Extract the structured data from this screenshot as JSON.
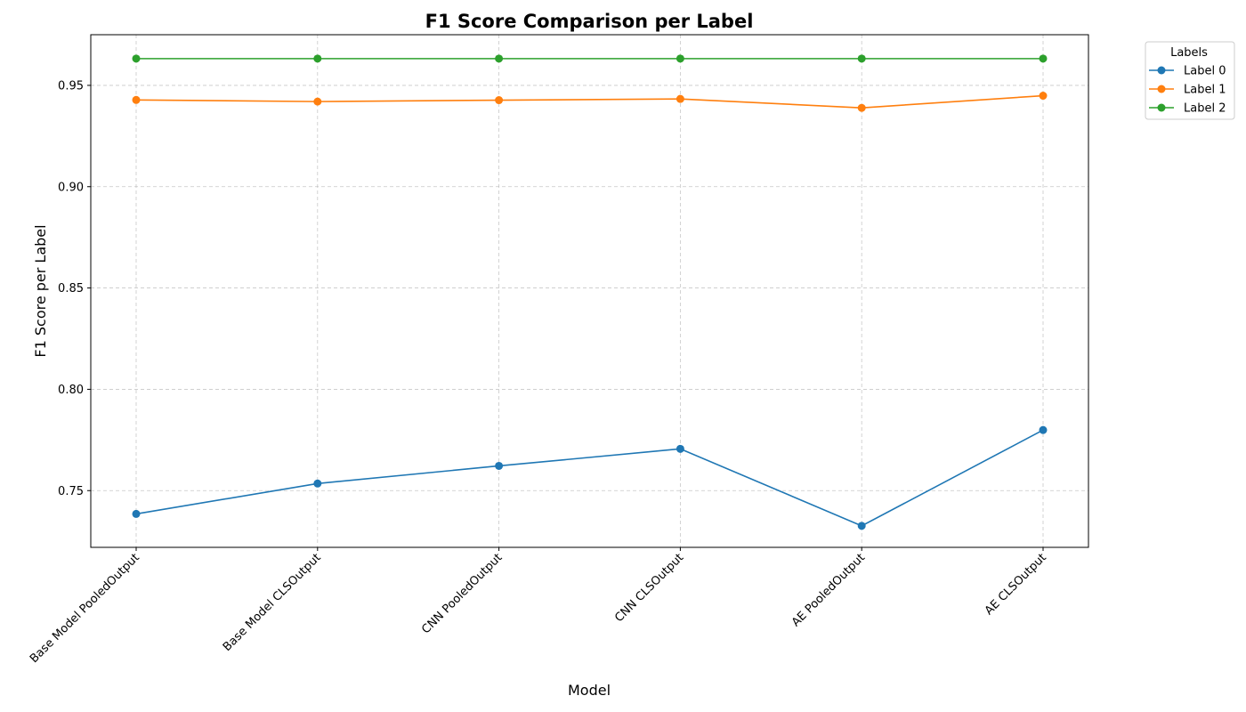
{
  "chart_data": {
    "type": "line",
    "title": "F1 Score Comparison per Label",
    "xlabel": "Model",
    "ylabel": "F1 Score per Label",
    "categories": [
      "Base Model PooledOutput",
      "Base Model CLSOutput",
      "CNN PooledOutput",
      "CNN CLSOutput",
      "AE PooledOutput",
      "AE CLSOutput"
    ],
    "ylim": [
      0.722,
      0.975
    ],
    "yticks": [
      0.75,
      0.8,
      0.85,
      0.9,
      0.95
    ],
    "ytick_labels": [
      "0.75",
      "0.80",
      "0.85",
      "0.90",
      "0.95"
    ],
    "grid": true,
    "legend_title": "Labels",
    "legend_position": "outside-top-right",
    "series": [
      {
        "name": "Label 0",
        "color": "#1f77b4",
        "values": [
          0.7385,
          0.7535,
          0.7622,
          0.7706,
          0.7326,
          0.7799
        ]
      },
      {
        "name": "Label 1",
        "color": "#ff7f0e",
        "values": [
          0.9428,
          0.942,
          0.9427,
          0.9433,
          0.9389,
          0.9449
        ]
      },
      {
        "name": "Label 2",
        "color": "#2ca02c",
        "values": [
          0.9632,
          0.9632,
          0.9632,
          0.9632,
          0.9632,
          0.9632
        ]
      }
    ]
  }
}
